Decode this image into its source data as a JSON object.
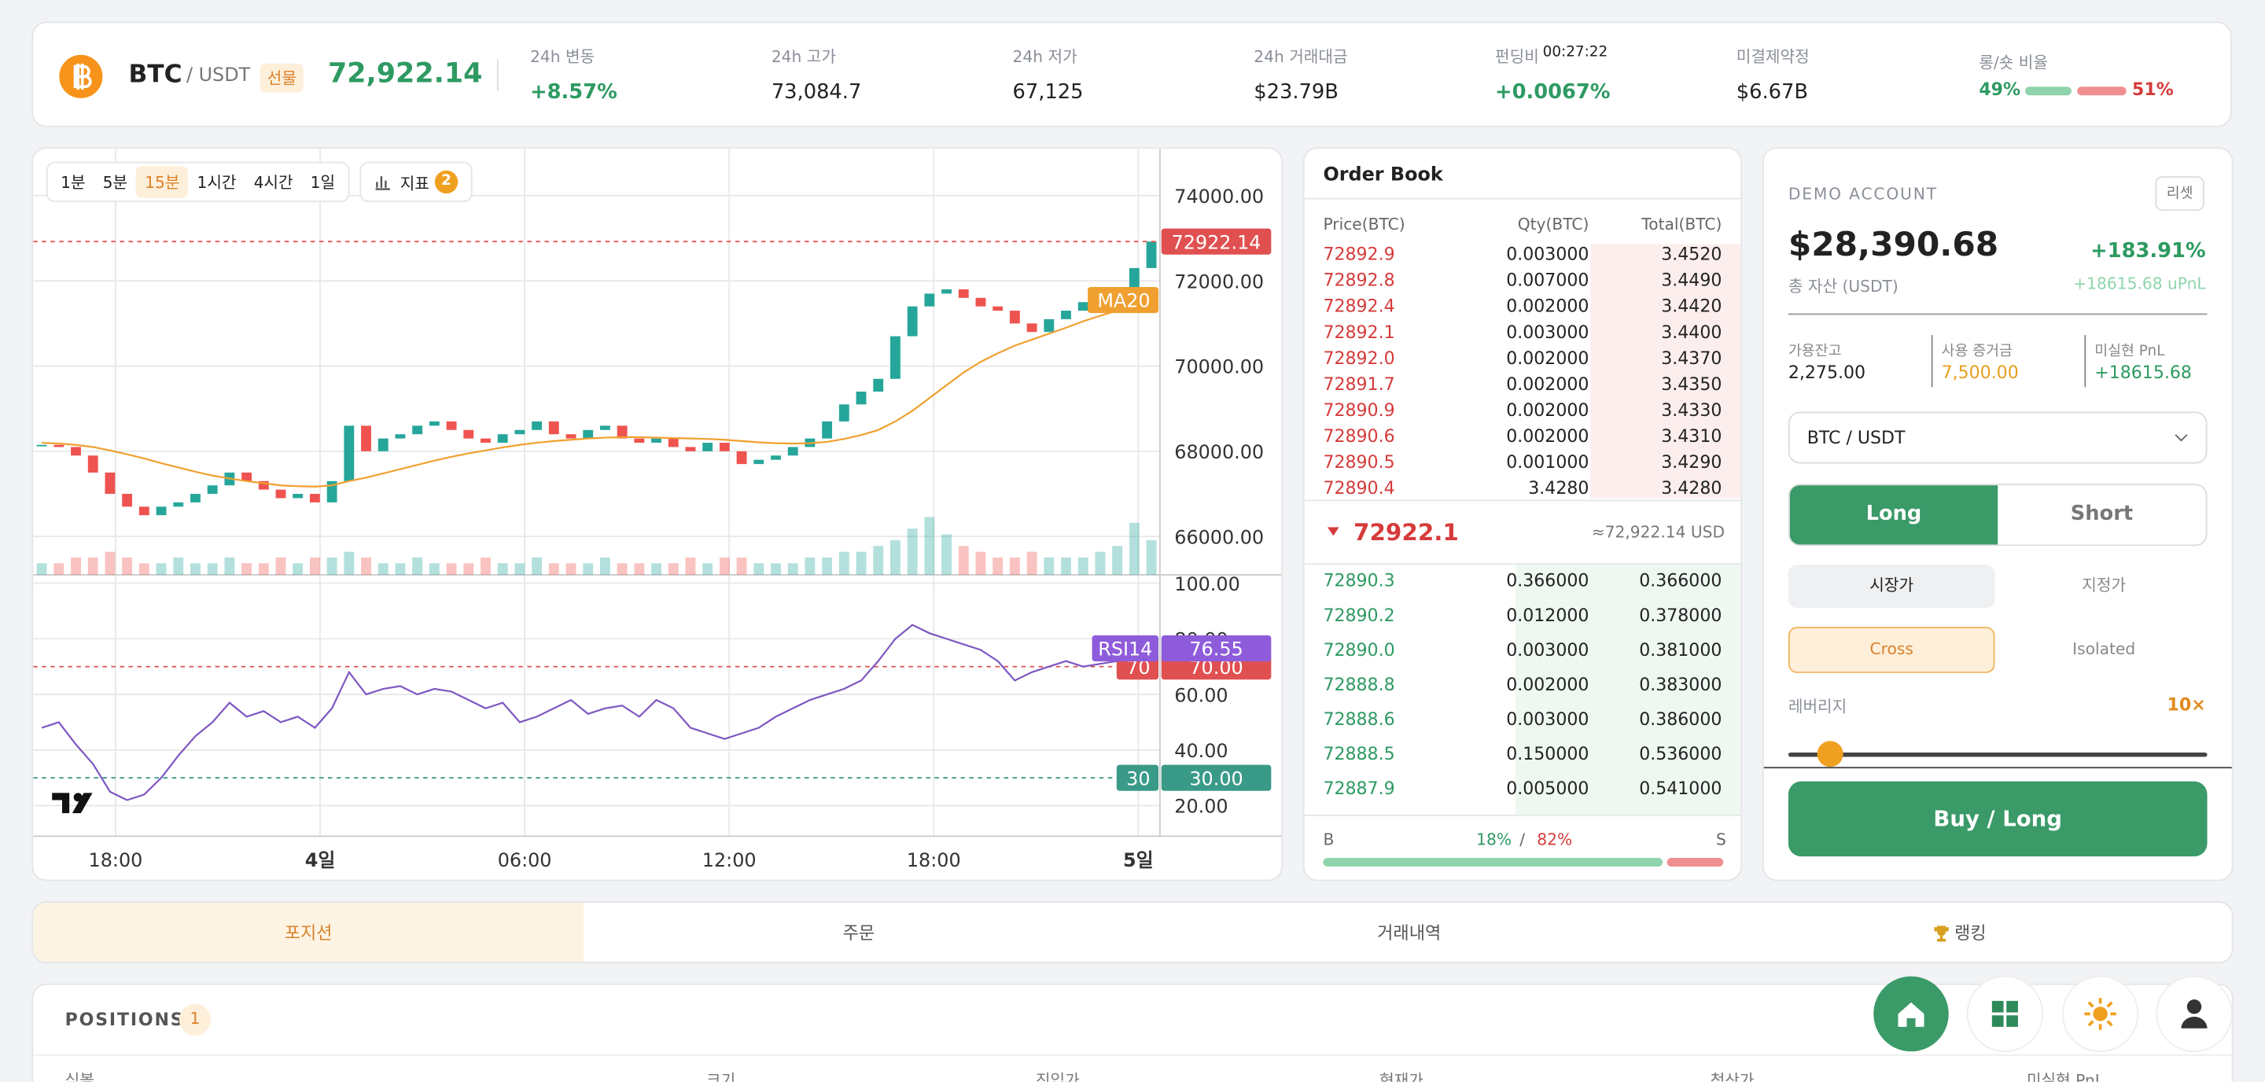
{
  "header": {
    "symbol": "BTC",
    "pair": "/ USDT",
    "badge": "선물",
    "price": "72,922.14",
    "stats": [
      {
        "label": "24h 변동",
        "value": "+8.57%"
      },
      {
        "label": "24h 고가",
        "value": "73,084.7"
      },
      {
        "label": "24h 저가",
        "value": "67,125"
      },
      {
        "label": "24h 거래대금",
        "value": "$23.79B"
      },
      {
        "label": "펀딩비",
        "timer": "00:27:22",
        "value": "+0.0067%"
      },
      {
        "label": "미결제약정",
        "value": "$6.67B"
      }
    ],
    "ratio": {
      "label": "롱/숏 비율",
      "long": 49,
      "long_label": "49%",
      "short": 51,
      "short_label": "51%"
    }
  },
  "toolbar": {
    "intervals": [
      "1분",
      "5분",
      "15분",
      "1시간",
      "4시간",
      "1일"
    ],
    "indicator": "지표",
    "indicator_count": "2"
  },
  "chart_data": {
    "type": "candlestick",
    "closes": [
      68150,
      68100,
      67900,
      67500,
      67000,
      66700,
      66500,
      66700,
      66800,
      67000,
      67200,
      67500,
      67300,
      67100,
      66900,
      67000,
      66800,
      67300,
      68600,
      68000,
      68300,
      68400,
      68600,
      68700,
      68500,
      68300,
      68200,
      68400,
      68500,
      68700,
      68400,
      68300,
      68500,
      68600,
      68300,
      68200,
      68300,
      68100,
      68000,
      68200,
      68000,
      67700,
      67800,
      67900,
      68100,
      68300,
      68700,
      69100,
      69400,
      69700,
      70700,
      71400,
      71700,
      71800,
      71600,
      71400,
      71300,
      71000,
      70800,
      71100,
      71300,
      71500,
      71600,
      71700,
      72300,
      72922.14
    ],
    "ma_name": "MA20",
    "ma20": [
      68200,
      68180,
      68150,
      68100,
      68020,
      67930,
      67830,
      67720,
      67620,
      67520,
      67430,
      67360,
      67300,
      67250,
      67200,
      67180,
      67170,
      67200,
      67300,
      67380,
      67480,
      67580,
      67680,
      67780,
      67870,
      67950,
      68020,
      68090,
      68150,
      68200,
      68240,
      68270,
      68300,
      68320,
      68330,
      68330,
      68320,
      68310,
      68300,
      68290,
      68270,
      68240,
      68210,
      68190,
      68180,
      68190,
      68220,
      68290,
      68380,
      68500,
      68700,
      68950,
      69250,
      69550,
      69850,
      70100,
      70300,
      70480,
      70620,
      70760,
      70900,
      71050,
      71180,
      71300,
      71420,
      71550
    ],
    "volumes": [
      2,
      2,
      3,
      3,
      4,
      3,
      2,
      2,
      3,
      2,
      2,
      3,
      2,
      2,
      3,
      2,
      3,
      3,
      4,
      3,
      2,
      2,
      3,
      2,
      2,
      2,
      3,
      2,
      2,
      3,
      2,
      2,
      2,
      3,
      2,
      2,
      2,
      2,
      3,
      2,
      3,
      3,
      2,
      2,
      2,
      3,
      3,
      4,
      4,
      5,
      6,
      8,
      10,
      7,
      5,
      4,
      3,
      3,
      4,
      3,
      3,
      3,
      4,
      5,
      9,
      6
    ],
    "rsi_name": "RSI14",
    "rsi": [
      48,
      50,
      42,
      35,
      25,
      22,
      24,
      30,
      38,
      45,
      50,
      57,
      52,
      54,
      50,
      52,
      48,
      55,
      68,
      60,
      62,
      63,
      60,
      62,
      61,
      58,
      55,
      57,
      50,
      52,
      55,
      58,
      53,
      55,
      56,
      52,
      58,
      55,
      48,
      46,
      44,
      46,
      48,
      52,
      55,
      58,
      60,
      62,
      65,
      72,
      80,
      85,
      82,
      80,
      78,
      76,
      72,
      65,
      68,
      70,
      72,
      70,
      71,
      72,
      74,
      76.55
    ],
    "rsi_levels": [
      {
        "value": 70,
        "label": "70.00"
      },
      {
        "value": 30,
        "label": "30.00"
      }
    ],
    "ylim": [
      65100,
      75100
    ],
    "yticks": [
      {
        "value": 74000,
        "label": "74000.00"
      },
      {
        "value": 72000,
        "label": "72000.00"
      },
      {
        "value": 70000,
        "label": "70000.00"
      },
      {
        "value": 68000,
        "label": "68000.00"
      },
      {
        "value": 66000,
        "label": "66000.00"
      }
    ],
    "rsi_ylim": [
      9,
      103
    ],
    "rsi_ticks": [
      {
        "value": 100,
        "label": "100.00"
      },
      {
        "value": 80,
        "label": "80.00"
      },
      {
        "value": 60,
        "label": "60.00"
      },
      {
        "value": 40,
        "label": "40.00"
      },
      {
        "value": 20,
        "label": "20.00"
      }
    ],
    "time_labels": [
      "18:00",
      "4일",
      "06:00",
      "12:00",
      "18:00",
      "5일"
    ],
    "grid": true
  },
  "order_book": {
    "title": "Order Book",
    "columns": [
      "Price(BTC)",
      "Qty(BTC)",
      "Total(BTC)"
    ],
    "asks": [
      [
        "72892.9",
        "0.003000",
        "3.4520"
      ],
      [
        "72892.8",
        "0.007000",
        "3.4490"
      ],
      [
        "72892.4",
        "0.002000",
        "3.4420"
      ],
      [
        "72892.1",
        "0.003000",
        "3.4400"
      ],
      [
        "72892.0",
        "0.002000",
        "3.4370"
      ],
      [
        "72891.7",
        "0.002000",
        "3.4350"
      ],
      [
        "72890.9",
        "0.002000",
        "3.4330"
      ],
      [
        "72890.6",
        "0.002000",
        "3.4310"
      ],
      [
        "72890.5",
        "0.001000",
        "3.4290"
      ],
      [
        "72890.4",
        "3.4280",
        "3.4280"
      ]
    ],
    "mid": "72922.1",
    "mid_usd": "≈72,922.14 USD",
    "bids": [
      [
        "72890.3",
        "0.366000",
        "0.366000"
      ],
      [
        "72890.2",
        "0.012000",
        "0.378000"
      ],
      [
        "72890.0",
        "0.003000",
        "0.381000"
      ],
      [
        "72888.8",
        "0.002000",
        "0.383000"
      ],
      [
        "72888.6",
        "0.003000",
        "0.386000"
      ],
      [
        "72888.5",
        "0.150000",
        "0.536000"
      ],
      [
        "72887.9",
        "0.005000",
        "0.541000"
      ]
    ],
    "buy_label": "B",
    "buy_pct": "18%",
    "sep": "/",
    "sell_pct": "82%",
    "sell_label": "S"
  },
  "account": {
    "title": "DEMO ACCOUNT",
    "reset": "리셋",
    "balance": "$28,390.68",
    "change": "+183.91%",
    "balance_label": "총 자산 (USDT)",
    "upnl": "+18615.68 uPnL",
    "boxes": [
      {
        "label": "가용잔고",
        "value": "2,275.00"
      },
      {
        "label": "사용 증거금",
        "value": "7,500.00"
      },
      {
        "label": "미실현 PnL",
        "value": "+18615.68"
      }
    ],
    "symbol_select": "BTC / USDT",
    "long": "Long",
    "short": "Short",
    "market": "시장가",
    "limit": "지정가",
    "cross": "Cross",
    "isolated": "Isolated",
    "leverage_label": "레버리지",
    "leverage": "10×",
    "submit": "Buy / Long"
  },
  "tabs": [
    "포지션",
    "주문",
    "거래내역",
    "랭킹"
  ],
  "positions": {
    "title": "POSITIONS",
    "count": "1",
    "columns": [
      "심볼",
      "크기",
      "진입가",
      "현재가",
      "청산가",
      "미실현 PnL"
    ]
  }
}
